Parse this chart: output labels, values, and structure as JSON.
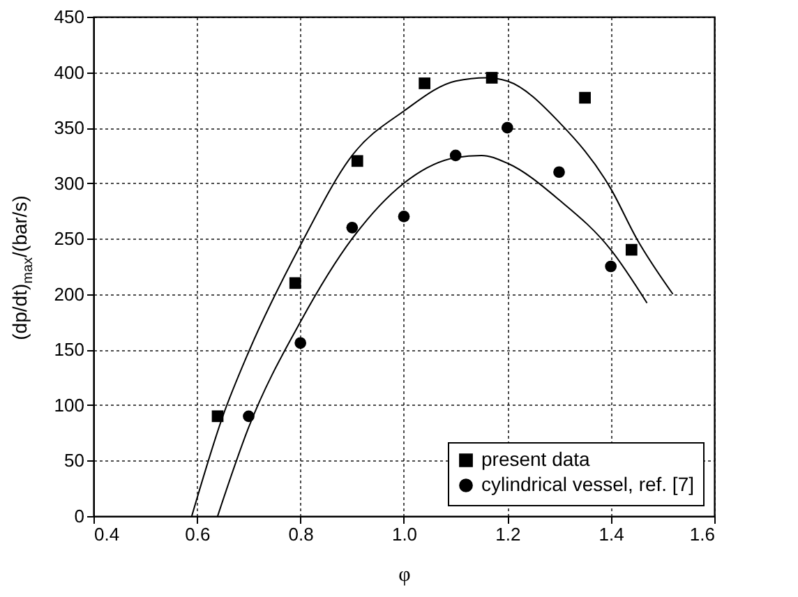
{
  "chart_data": {
    "type": "scatter",
    "xlabel": "φ",
    "ylabel": "(dp/dt)$_{max}$/(bar/s)",
    "xlim": [
      0.4,
      1.6
    ],
    "xticks": [
      0.4,
      0.6,
      0.8,
      {
        "value": 1.0,
        "label": "1.0"
      },
      1.2,
      1.4,
      1.6
    ],
    "ylim": [
      0,
      450
    ],
    "yticks": [
      0,
      50,
      100,
      150,
      200,
      250,
      300,
      350,
      400,
      450
    ],
    "grid": true,
    "legend": "bottom right",
    "series": [
      {
        "name": "present data",
        "type": "scatter",
        "marker": "square",
        "color": "#000000",
        "x": [
          0.64,
          0.79,
          0.91,
          1.04,
          1.17,
          1.35,
          1.44
        ],
        "values": [
          90,
          210,
          320,
          390,
          395,
          377,
          240
        ]
      },
      {
        "name": "cylindrical vessel, ref. [7]",
        "type": "scatter",
        "marker": "circle",
        "color": "#000000",
        "x": [
          0.7,
          0.8,
          0.9,
          1.0,
          1.1,
          1.2,
          1.3,
          1.4
        ],
        "values": [
          90,
          156,
          260,
          270,
          325,
          350,
          310,
          225
        ]
      },
      {
        "type": "line",
        "marker": "none",
        "color": "#000000",
        "x": [
          0.59,
          0.65,
          0.7,
          0.8,
          0.9,
          1.0,
          1.1,
          1.16,
          1.2,
          1.3,
          1.4,
          1.45,
          1.52
        ],
        "values": [
          0,
          90,
          148,
          244,
          325,
          365,
          392,
          395,
          392,
          355,
          295,
          250,
          200
        ]
      },
      {
        "type": "line",
        "marker": "none",
        "color": "#000000",
        "x": [
          0.64,
          0.7,
          0.8,
          0.9,
          1.0,
          1.1,
          1.15,
          1.2,
          1.3,
          1.4,
          1.47
        ],
        "values": [
          0,
          80,
          175,
          250,
          300,
          323,
          325,
          318,
          285,
          240,
          192
        ]
      }
    ]
  }
}
